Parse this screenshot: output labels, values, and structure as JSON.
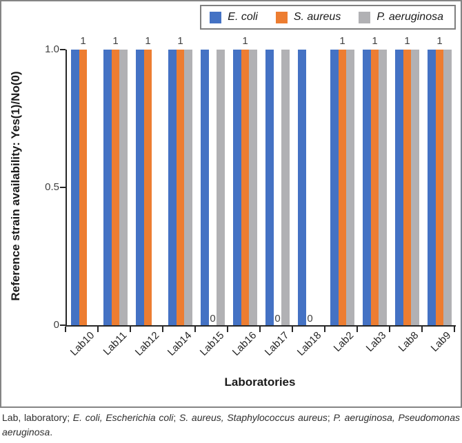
{
  "chart_data": {
    "type": "bar",
    "title": "",
    "xlabel": "Laboratories",
    "ylabel": "Reference strain availability: Yes(1)/No(0)",
    "ylim": [
      0,
      1
    ],
    "grid": false,
    "legend_position": "top-right",
    "yticks": [
      {
        "value": 0,
        "label": "0"
      },
      {
        "value": 0.5,
        "label": "0.5"
      },
      {
        "value": 1,
        "label": "1.0"
      }
    ],
    "categories": [
      "Lab10",
      "Lab11",
      "Lab12",
      "Lab14",
      "Lab15",
      "Lab16",
      "Lab17",
      "Lab18",
      "Lab2",
      "Lab3",
      "Lab8",
      "Lab9"
    ],
    "series": [
      {
        "name": "E. coli",
        "color": "#4472C4",
        "show_labels": false,
        "values": [
          1,
          1,
          1,
          1,
          1,
          1,
          1,
          1,
          1,
          1,
          1,
          1
        ]
      },
      {
        "name": "S. aureus",
        "color": "#ED7D31",
        "show_labels": true,
        "values": [
          1,
          1,
          1,
          1,
          0,
          1,
          0,
          0,
          1,
          1,
          1,
          1
        ]
      },
      {
        "name": "P. aeruginosa",
        "color": "#B1B1B4",
        "show_labels": false,
        "values": [
          0,
          1,
          0,
          1,
          1,
          1,
          1,
          0,
          1,
          1,
          1,
          1
        ]
      }
    ],
    "colors": {
      "axis": "#262626",
      "tick_label": "#404040",
      "figure_border": "#848484",
      "legend_border": "#7F7F7F"
    }
  },
  "caption": {
    "full_text": "Lab, laboratory; E. coli, Escherichia coli; S. aureus, Staphylococcus aureus; P. aeruginosa, Pseudomonas aeruginosa.",
    "segments": [
      {
        "text": "Lab, laboratory; ",
        "italic": false
      },
      {
        "text": "E. coli, Escherichia coli",
        "italic": true
      },
      {
        "text": "; ",
        "italic": false
      },
      {
        "text": "S. aureus, Staphylococcus aureus",
        "italic": true
      },
      {
        "text": "; ",
        "italic": false
      },
      {
        "text": "P. aeruginosa, Pseudomonas aeruginosa",
        "italic": true
      },
      {
        "text": ".",
        "italic": false
      }
    ]
  }
}
